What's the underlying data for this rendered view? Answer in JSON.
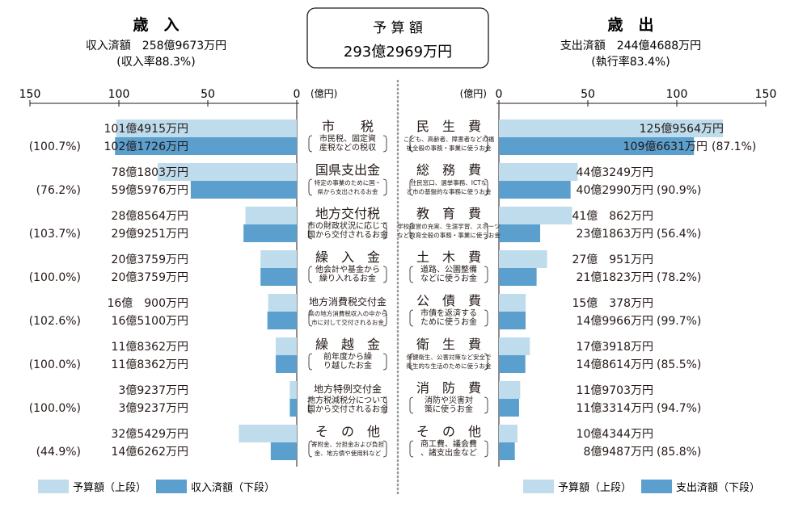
{
  "colors": {
    "budget": "#bfdcec",
    "actual": "#5a9fce",
    "text": "#231815",
    "axis": "#231815",
    "divider": "#999999"
  },
  "center": {
    "title": "予 算 額",
    "total": "293億2969万円"
  },
  "revenue": {
    "heading": "歳　入",
    "summary": "収入済額　258億9673万円",
    "rate": "(収入率88.3%)",
    "unit": "(億円)",
    "ticks": [
      "150",
      "100",
      "50",
      "0"
    ],
    "legend_budget": "予算額（上段）",
    "legend_actual": "収入済額（下段）"
  },
  "expenditure": {
    "heading": "歳　出",
    "summary": "支出済額　244億4688万円",
    "rate": "(執行率83.4%)",
    "unit": "(億円)",
    "ticks": [
      "0",
      "50",
      "100",
      "150"
    ],
    "legend_budget": "予算額（上段）",
    "legend_actual": "支出済額（下段）"
  },
  "chart_data": [
    {
      "type": "bar",
      "title": "歳　入",
      "unit": "億円",
      "xlim": [
        0,
        150
      ],
      "categories": [
        "市　　税",
        "国県支出金",
        "地方交付税",
        "繰　入　金",
        "地方消費税交付金",
        "繰　越　金",
        "地方特例交付金",
        "そ　の　他"
      ],
      "descriptions": [
        "市民税、固定資産税などの税収",
        "特定の事業のために国・県から支出されるお金",
        "市の財政状況に応じて国から交付されるお金",
        "他会計や基金から繰り入れるお金",
        "県の地方消費税収入の中から市に対して交付されるお金",
        "前年度から繰り越したお金",
        "地方税減税分について国から交付されるお金",
        "寄附金、分担金および負担金、地方債や使用料など"
      ],
      "series": [
        {
          "name": "予算額（上段）",
          "values": [
            101.4915,
            78.1803,
            28.8564,
            20.3759,
            16.09,
            11.8362,
            3.9237,
            32.5429
          ],
          "labels": [
            "101億4915万円",
            "78億1803万円",
            "28億8564万円",
            "20億3759万円",
            "16億　900万円",
            "11億8362万円",
            "3億9237万円",
            "32億5429万円"
          ]
        },
        {
          "name": "収入済額（下段）",
          "values": [
            102.1726,
            59.5976,
            29.9251,
            20.3759,
            16.51,
            11.8362,
            3.9237,
            14.6262
          ],
          "labels": [
            "102億1726万円",
            "59億5976万円",
            "29億9251万円",
            "20億3759万円",
            "16億5100万円",
            "11億8362万円",
            "3億9237万円",
            "14億6262万円"
          ]
        }
      ],
      "rates": [
        "(100.7%)",
        "(76.2%)",
        "(103.7%)",
        "(100.0%)",
        "(102.6%)",
        "(100.0%)",
        "(100.0%)",
        "(44.9%)"
      ]
    },
    {
      "type": "bar",
      "title": "歳　出",
      "unit": "億円",
      "xlim": [
        0,
        150
      ],
      "categories": [
        "民　生　費",
        "総　務　費",
        "教　育　費",
        "土　木　費",
        "公　債　費",
        "衛　生　費",
        "消　防　費",
        "そ　の　他"
      ],
      "descriptions": [
        "こども、高齢者、障害者などの福祉全般の事務・事業に使うお金",
        "住民窓口、選挙事務、ICTなど市の基盤的な事務に使うお金",
        "学校運営の充実、生涯学習、スポーツなど教育全般の事務・事業に使うお金",
        "道路、公園整備などに使うお金",
        "市債を返済するために使うお金",
        "保健衛生、公害対策など安全で衛生的な生活のために使うお金",
        "消防や災害対策に使うお金",
        "商工費、議会費、諸支出金など"
      ],
      "series": [
        {
          "name": "予算額（上段）",
          "values": [
            125.9564,
            44.3249,
            41.0862,
            27.0951,
            15.0378,
            17.3918,
            11.9703,
            10.4344
          ],
          "labels": [
            "125億9564万円",
            "44億3249万円",
            "41億　862万円",
            "27億　951万円",
            "15億　378万円",
            "17億3918万円",
            "11億9703万円",
            "10億4344万円"
          ]
        },
        {
          "name": "支出済額（下段）",
          "values": [
            109.6631,
            40.299,
            23.1863,
            21.1823,
            14.9966,
            14.8614,
            11.3314,
            8.9487
          ],
          "labels": [
            "109億6631万円",
            "40億2990万円",
            "23億1863万円",
            "21億1823万円",
            "14億9966万円",
            "14億8614万円",
            "11億3314万円",
            "8億9487万円"
          ]
        }
      ],
      "rates": [
        "(87.1%)",
        "(90.9%)",
        "(56.4%)",
        "(78.2%)",
        "(99.7%)",
        "(85.5%)",
        "(94.7%)",
        "(85.8%)"
      ]
    }
  ]
}
